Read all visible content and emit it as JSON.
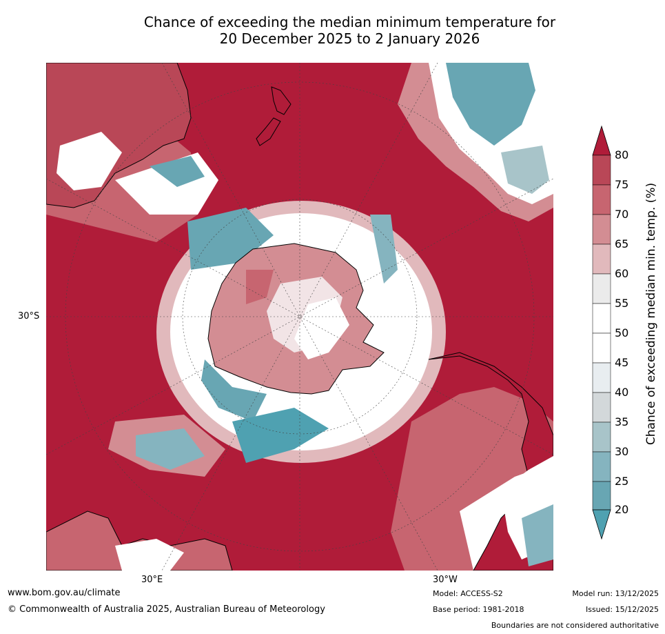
{
  "title": {
    "line1": "Chance of exceeding the median minimum temperature for",
    "line2": "20 December 2025 to 2 January 2026"
  },
  "map": {
    "description_layers": [
      "ocean",
      "antarctica",
      "australia",
      "new-zealand",
      "south-america",
      "africa"
    ],
    "lat_label": "30°S",
    "lon_label_left": "30°E",
    "lon_label_right": "30°W"
  },
  "colorbar": {
    "title": "Chance of exceeding median min. temp. (%)",
    "ticks": [
      "80",
      "75",
      "70",
      "65",
      "60",
      "55",
      "50",
      "45",
      "40",
      "35",
      "30",
      "25",
      "20"
    ],
    "colors": {
      "top_extend": "#b01c39",
      "b75_80": "#b94757",
      "b70_75": "#c76570",
      "b65_70": "#d38d93",
      "b60_65": "#e1b9bc",
      "b55_60": "#ebebeb",
      "b50_55": "#ffffff",
      "b45_50": "#ffffff",
      "b40_45": "#e8edf0",
      "b35_40": "#d3d8da",
      "b30_35": "#a8c4c9",
      "b25_30": "#85b4bf",
      "b20_25": "#68a6b3",
      "bottom_extend": "#4fa1b1"
    }
  },
  "footer": {
    "website": "www.bom.gov.au/climate",
    "copyright": "© Commonwealth of Australia 2025, Australian Bureau of Meteorology",
    "model": "Model: ACCESS-S2",
    "base_period": "Base period: 1981-2018",
    "model_run": "Model run: 13/12/2025",
    "issued": "Issued: 15/12/2025",
    "disclaimer": "Boundaries are not considered authoritative"
  }
}
